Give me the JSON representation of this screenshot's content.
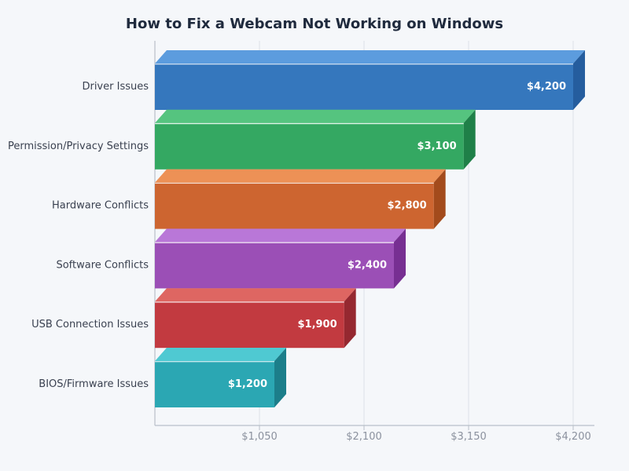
{
  "chart_data": {
    "type": "bar",
    "orientation": "horizontal",
    "style": "3d",
    "title": "How to Fix a Webcam Not Working on Windows",
    "categories": [
      "Driver Issues",
      "Permission/Privacy Settings",
      "Hardware Conflicts",
      "Software Conflicts",
      "USB Connection Issues",
      "BIOS/Firmware Issues"
    ],
    "values": [
      4200,
      3100,
      2800,
      2400,
      1900,
      1200
    ],
    "value_labels": [
      "$4,200",
      "$3,100",
      "$2,800",
      "$2,400",
      "$1,900",
      "$1,200"
    ],
    "xlim": [
      0,
      4200
    ],
    "x_ticks": [
      {
        "value": 1050,
        "label": "$1,050"
      },
      {
        "value": 2100,
        "label": "$2,100"
      },
      {
        "value": 3150,
        "label": "$3,150"
      },
      {
        "value": 4200,
        "label": "$4,200"
      }
    ],
    "grid": true,
    "legend": false,
    "bars": [
      {
        "category": "Driver Issues",
        "value": 4200,
        "label": "$4,200",
        "colors": {
          "front": "#3577BD",
          "top": "#5C9CDE",
          "side": "#255D9E"
        }
      },
      {
        "category": "Permission/Privacy Settings",
        "value": 3100,
        "label": "$3,100",
        "colors": {
          "front": "#34A862",
          "top": "#55C47F",
          "side": "#1F8048"
        }
      },
      {
        "category": "Hardware Conflicts",
        "value": 2800,
        "label": "$2,800",
        "colors": {
          "front": "#CD6530",
          "top": "#ED9156",
          "side": "#A34B1C"
        }
      },
      {
        "category": "Software Conflicts",
        "value": 2400,
        "label": "$2,400",
        "colors": {
          "front": "#9B4FB6",
          "top": "#B977D8",
          "side": "#772F92"
        }
      },
      {
        "category": "USB Connection Issues",
        "value": 1900,
        "label": "$1,900",
        "colors": {
          "front": "#C23A40",
          "top": "#DE6662",
          "side": "#952830"
        }
      },
      {
        "category": "BIOS/Firmware Issues",
        "value": 1200,
        "label": "$1,200",
        "colors": {
          "front": "#2BA7B3",
          "top": "#4FC9D2",
          "side": "#1C7E8A"
        }
      }
    ],
    "colors": {
      "background": "#F5F7FA",
      "title": "#1F2A3D",
      "category_label": "#3A4150",
      "value_label": "#FFFFFF",
      "tick_label": "#8B919E",
      "gridline": "#DDE1E8",
      "axis": "#B9BFC9",
      "bar_top_highlight": "#FFFFFF"
    }
  }
}
